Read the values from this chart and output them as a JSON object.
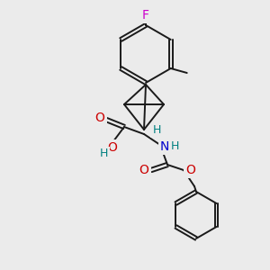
{
  "background_color": "#ebebeb",
  "bond_color": "#1a1a1a",
  "atom_colors": {
    "F": "#cc00cc",
    "O": "#cc0000",
    "N": "#0000cc",
    "H": "#008080",
    "C": "#1a1a1a"
  },
  "figsize": [
    3.0,
    3.0
  ],
  "dpi": 100
}
